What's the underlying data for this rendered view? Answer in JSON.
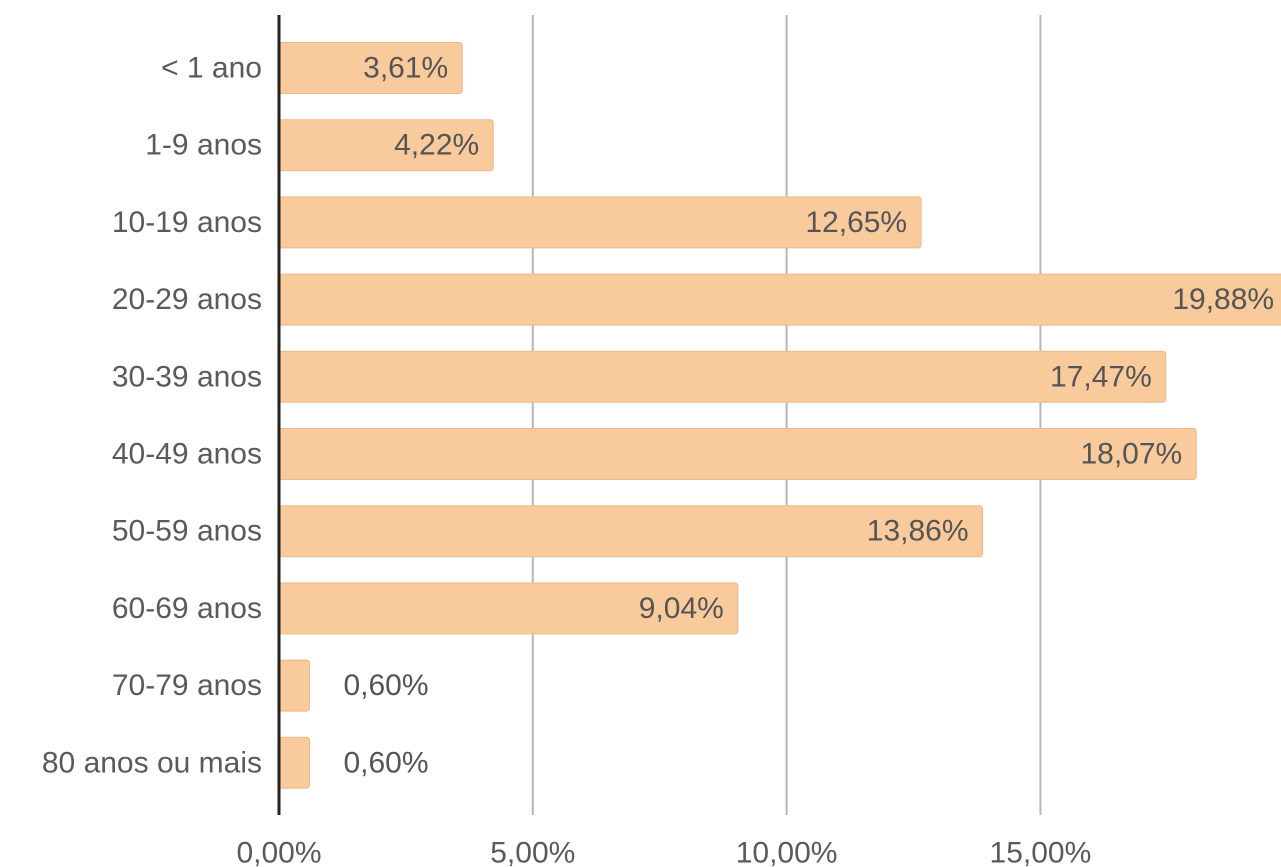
{
  "chart_data": {
    "type": "bar",
    "orientation": "horizontal",
    "categories": [
      "<  1 ano",
      "1-9 anos",
      "10-19 anos",
      "20-29 anos",
      "30-39 anos",
      "40-49 anos",
      "50-59 anos",
      "60-69 anos",
      "70-79 anos",
      "80 anos ou mais"
    ],
    "values": [
      3.61,
      4.22,
      12.65,
      19.88,
      17.47,
      18.07,
      13.86,
      9.04,
      0.6,
      0.6
    ],
    "data_labels": [
      "3,61%",
      "4,22%",
      "12,65%",
      "19,88%",
      "17,47%",
      "18,07%",
      "13,86%",
      "9,04%",
      "0,60%",
      "0,60%"
    ],
    "x_ticks": [
      0,
      5,
      10,
      15
    ],
    "x_tick_labels": [
      "0,00%",
      "5,00%",
      "10,00%",
      "15,00%"
    ],
    "xlim": [
      0,
      19.88
    ],
    "title": "",
    "xlabel": "",
    "ylabel": "",
    "grid": "vertical",
    "legend": "none",
    "bar_color": "#f9cb9c",
    "grid_color": "#b7b7b7",
    "axis_color": "#222222"
  }
}
